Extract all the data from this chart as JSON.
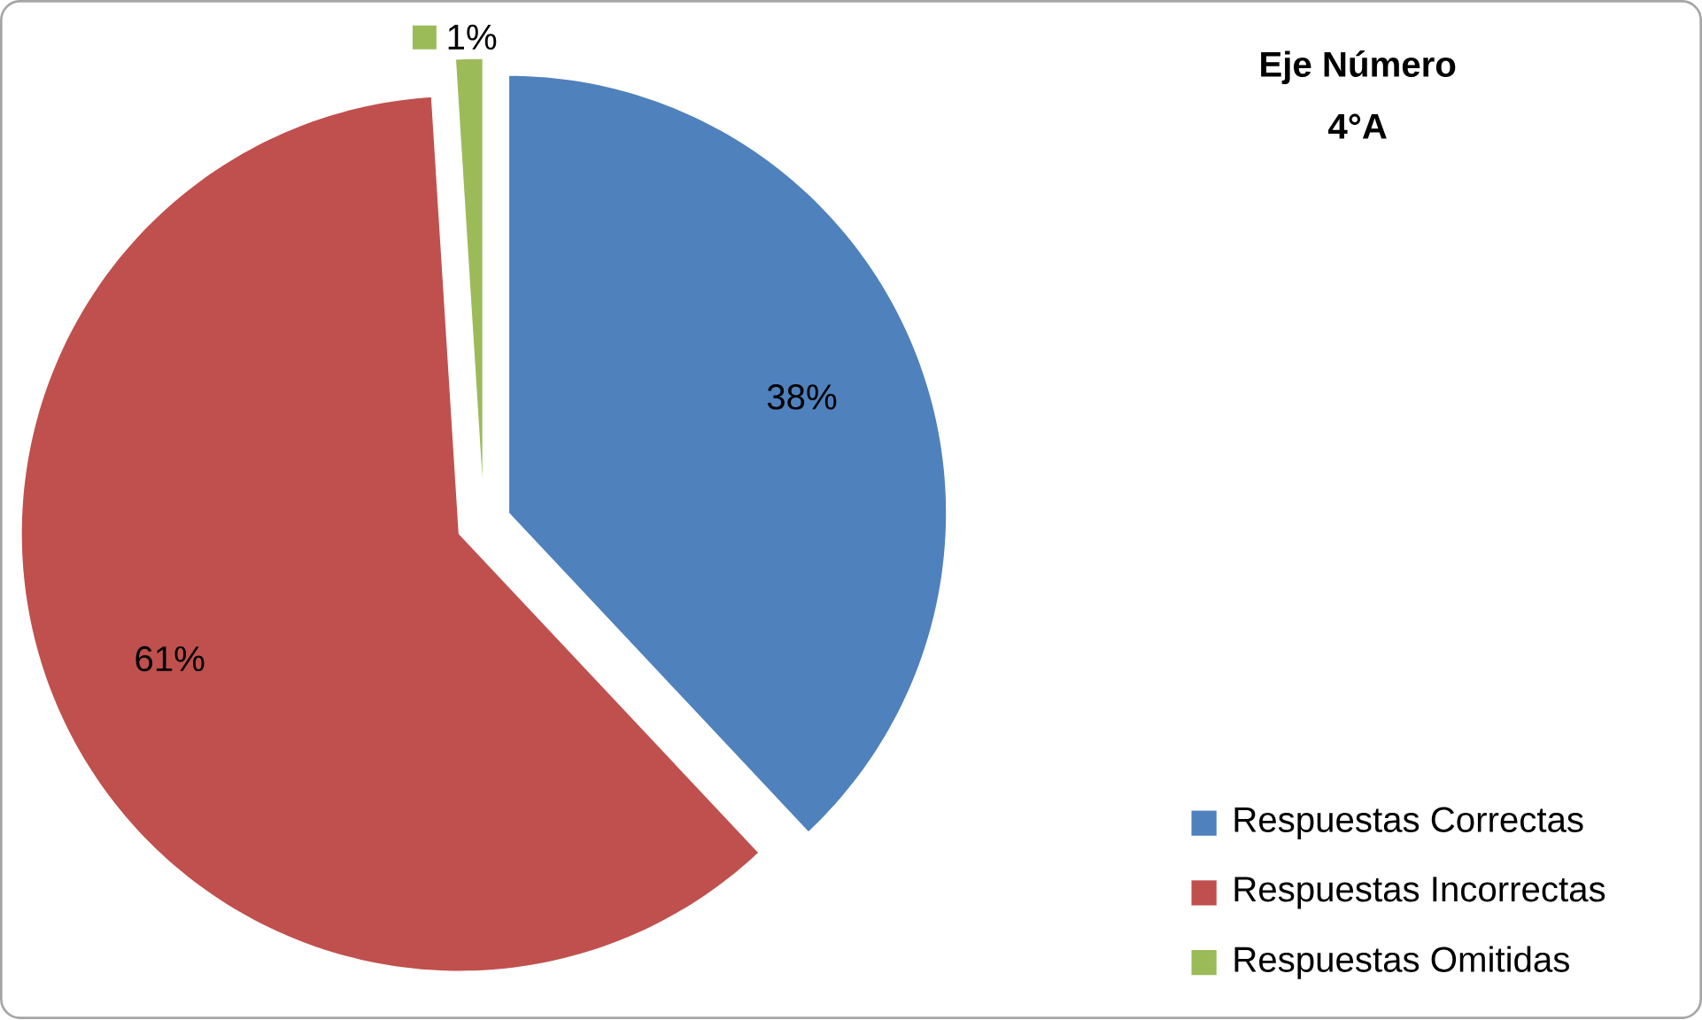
{
  "chart_data": {
    "type": "pie",
    "title": "Eje Número",
    "subtitle": "4°A",
    "categories": [
      "Respuestas Correctas",
      "Respuestas Incorrectas",
      "Respuestas Omitidas"
    ],
    "values": [
      38,
      61,
      1
    ],
    "colors": [
      "#4f81bd",
      "#c0504d",
      "#9bbb59"
    ],
    "value_labels": [
      "38%",
      "61%",
      "1%"
    ],
    "legend": "bottom right"
  }
}
